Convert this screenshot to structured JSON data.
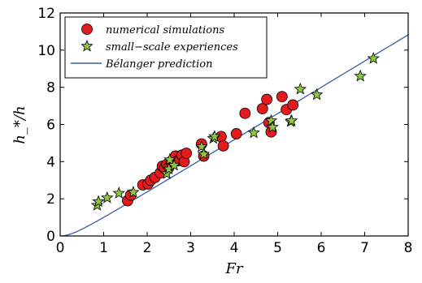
{
  "chart_data": {
    "type": "scatter",
    "xlabel": "Fr",
    "ylabel": "h_*/h",
    "xlim": [
      0,
      8
    ],
    "ylim": [
      0,
      12
    ],
    "xticks": [
      "0",
      "1",
      "2",
      "3",
      "4",
      "5",
      "6",
      "7",
      "8"
    ],
    "yticks": [
      "0",
      "2",
      "4",
      "6",
      "8",
      "10",
      "12"
    ],
    "grid": false,
    "legend_placement": "top-left",
    "series": [
      {
        "name": "numerical simulations",
        "marker": "circle",
        "color": "#e41a1c",
        "points": [
          [
            1.55,
            1.9
          ],
          [
            1.62,
            2.2
          ],
          [
            1.9,
            2.75
          ],
          [
            2.02,
            2.8
          ],
          [
            2.08,
            3.0
          ],
          [
            2.18,
            3.15
          ],
          [
            2.3,
            3.4
          ],
          [
            2.35,
            3.75
          ],
          [
            2.4,
            3.65
          ],
          [
            2.45,
            3.85
          ],
          [
            2.5,
            3.7
          ],
          [
            2.55,
            4.0
          ],
          [
            2.62,
            4.2
          ],
          [
            2.65,
            4.3
          ],
          [
            2.7,
            4.05
          ],
          [
            2.75,
            4.1
          ],
          [
            2.8,
            4.35
          ],
          [
            2.85,
            4.0
          ],
          [
            2.9,
            4.45
          ],
          [
            3.25,
            4.95
          ],
          [
            3.3,
            4.3
          ],
          [
            3.7,
            5.35
          ],
          [
            3.75,
            4.85
          ],
          [
            4.05,
            5.5
          ],
          [
            4.25,
            6.6
          ],
          [
            4.65,
            6.85
          ],
          [
            4.75,
            7.35
          ],
          [
            4.8,
            6.1
          ],
          [
            4.85,
            5.6
          ],
          [
            5.1,
            7.5
          ],
          [
            5.2,
            6.8
          ],
          [
            5.35,
            7.05
          ]
        ]
      },
      {
        "name": "small−scale experiences",
        "marker": "star",
        "color": "#8dc63f",
        "points": [
          [
            0.85,
            1.65
          ],
          [
            0.88,
            1.85
          ],
          [
            1.08,
            2.05
          ],
          [
            1.35,
            2.3
          ],
          [
            1.68,
            2.35
          ],
          [
            2.45,
            3.35
          ],
          [
            2.5,
            3.6
          ],
          [
            2.52,
            4.1
          ],
          [
            2.62,
            3.8
          ],
          [
            3.25,
            4.8
          ],
          [
            3.3,
            4.4
          ],
          [
            3.52,
            5.25
          ],
          [
            3.55,
            5.35
          ],
          [
            4.45,
            5.55
          ],
          [
            4.85,
            6.2
          ],
          [
            4.88,
            5.85
          ],
          [
            5.3,
            6.15
          ],
          [
            5.32,
            6.2
          ],
          [
            5.52,
            7.9
          ],
          [
            5.9,
            7.6
          ],
          [
            6.9,
            8.6
          ],
          [
            7.2,
            9.55
          ]
        ]
      },
      {
        "name": "Bélanger prediction",
        "marker": "line",
        "color": "#3b5ba5",
        "formula": "0.5*(sqrt(1+8*Fr^2)-1)"
      }
    ]
  }
}
